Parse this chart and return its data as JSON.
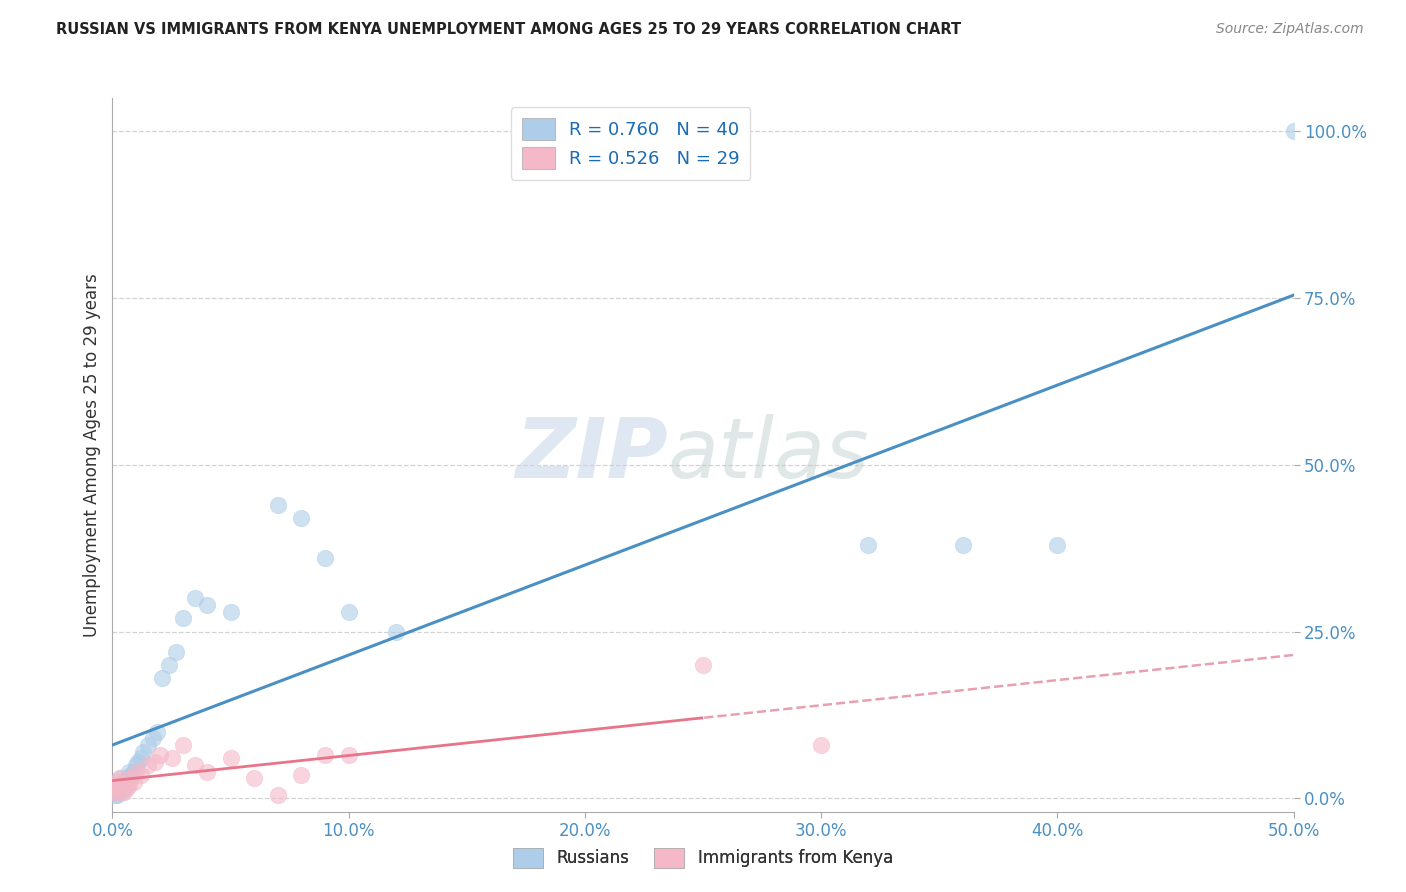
{
  "title": "RUSSIAN VS IMMIGRANTS FROM KENYA UNEMPLOYMENT AMONG AGES 25 TO 29 YEARS CORRELATION CHART",
  "source": "Source: ZipAtlas.com",
  "ylabel": "Unemployment Among Ages 25 to 29 years",
  "xlim": [
    0.0,
    0.5
  ],
  "ylim": [
    -0.02,
    1.05
  ],
  "xticks": [
    0.0,
    0.1,
    0.2,
    0.3,
    0.4,
    0.5
  ],
  "yticks": [
    0.0,
    0.25,
    0.5,
    0.75,
    1.0
  ],
  "xticklabels": [
    "0.0%",
    "10.0%",
    "20.0%",
    "30.0%",
    "40.0%",
    "50.0%"
  ],
  "yticklabels": [
    "0.0%",
    "25.0%",
    "50.0%",
    "75.0%",
    "100.0%"
  ],
  "blue_scatter_color": "#aecde8",
  "pink_scatter_color": "#f4b8c8",
  "blue_line_color": "#4a90c4",
  "pink_line_color": "#e8748a",
  "pink_dash_color": "#e8a0b0",
  "watermark_zip_color": "#c8d8ec",
  "watermark_atlas_color": "#c8d8d8",
  "russians_x": [
    0.001,
    0.001,
    0.001,
    0.002,
    0.002,
    0.002,
    0.003,
    0.003,
    0.004,
    0.004,
    0.005,
    0.005,
    0.006,
    0.006,
    0.007,
    0.008,
    0.009,
    0.01,
    0.011,
    0.012,
    0.013,
    0.015,
    0.017,
    0.019,
    0.021,
    0.024,
    0.027,
    0.03,
    0.035,
    0.04,
    0.05,
    0.07,
    0.08,
    0.09,
    0.1,
    0.12,
    0.32,
    0.36,
    0.4,
    0.5
  ],
  "russians_y": [
    0.005,
    0.01,
    0.02,
    0.005,
    0.01,
    0.015,
    0.02,
    0.03,
    0.01,
    0.02,
    0.015,
    0.025,
    0.02,
    0.03,
    0.04,
    0.035,
    0.04,
    0.05,
    0.055,
    0.06,
    0.07,
    0.08,
    0.09,
    0.1,
    0.18,
    0.2,
    0.22,
    0.27,
    0.3,
    0.29,
    0.28,
    0.44,
    0.42,
    0.36,
    0.28,
    0.25,
    0.38,
    0.38,
    0.38,
    1.0
  ],
  "kenya_x": [
    0.001,
    0.001,
    0.002,
    0.002,
    0.003,
    0.003,
    0.004,
    0.005,
    0.006,
    0.007,
    0.008,
    0.009,
    0.01,
    0.012,
    0.015,
    0.018,
    0.02,
    0.025,
    0.03,
    0.035,
    0.04,
    0.05,
    0.06,
    0.07,
    0.08,
    0.09,
    0.1,
    0.25,
    0.3
  ],
  "kenya_y": [
    0.01,
    0.02,
    0.01,
    0.025,
    0.015,
    0.03,
    0.02,
    0.01,
    0.015,
    0.02,
    0.03,
    0.025,
    0.04,
    0.035,
    0.05,
    0.055,
    0.065,
    0.06,
    0.08,
    0.05,
    0.04,
    0.06,
    0.03,
    0.005,
    0.035,
    0.065,
    0.065,
    0.2,
    0.08
  ],
  "blue_R": 0.76,
  "blue_N": 40,
  "pink_R": 0.526,
  "pink_N": 29
}
